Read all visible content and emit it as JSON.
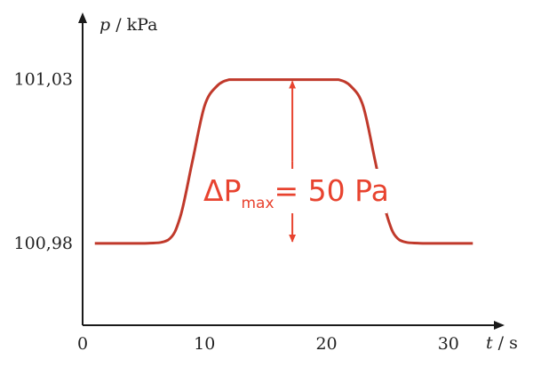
{
  "colors": {
    "curve": "#c0392b",
    "annotation": "#e8432f",
    "axis": "#1a1a1a"
  },
  "chart_data": {
    "type": "line",
    "title": "",
    "xlabel": {
      "var": "t",
      "unit": " / s"
    },
    "ylabel": {
      "var": "p",
      "unit": " / kPa"
    },
    "xlim": [
      0,
      33
    ],
    "ylim": [
      100.955,
      101.05
    ],
    "x_ticks": [
      {
        "value": 0,
        "label": "0"
      },
      {
        "value": 10,
        "label": "10"
      },
      {
        "value": 20,
        "label": "20"
      },
      {
        "value": 30,
        "label": "30"
      }
    ],
    "y_ticks": [
      {
        "value": 100.98,
        "label": "100,98"
      },
      {
        "value": 101.03,
        "label": "101,03"
      }
    ],
    "series": [
      {
        "x": [
          1,
          5,
          7,
          8,
          9,
          10,
          11,
          12,
          13,
          20,
          21,
          22,
          23,
          24,
          25,
          26,
          28,
          32
        ],
        "y": [
          100.98,
          100.98,
          100.981,
          100.988,
          101.005,
          101.022,
          101.028,
          101.03,
          101.03,
          101.03,
          101.03,
          101.028,
          101.022,
          101.005,
          100.988,
          100.981,
          100.98,
          100.98
        ]
      }
    ],
    "annotation": {
      "delta": "Δ",
      "symbol": "P",
      "subscript": "max",
      "rest": "= 50 Pa",
      "x": 17.2,
      "y_from": 101.03,
      "y_to": 100.98
    }
  }
}
